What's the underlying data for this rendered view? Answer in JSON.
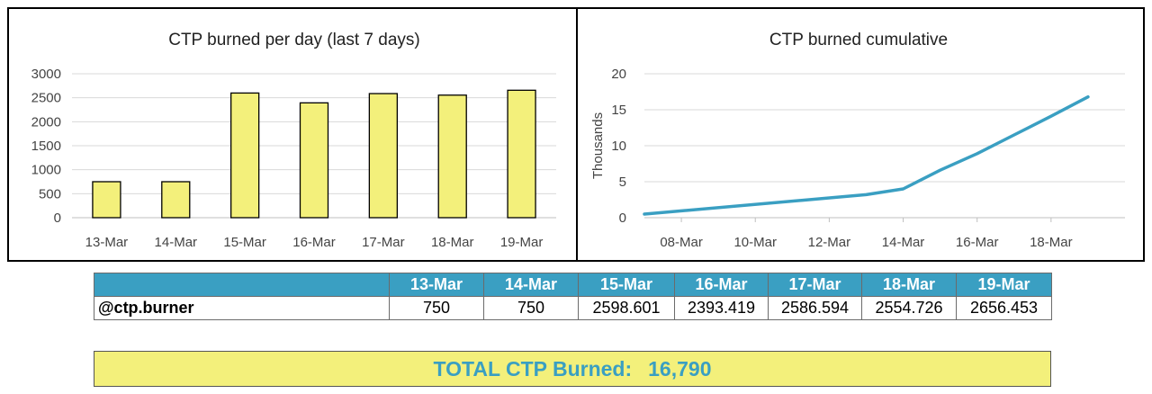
{
  "colors": {
    "bar_fill": "#f3f07b",
    "line": "#3a9fc2",
    "header_bg": "#3a9fc2",
    "total_bg": "#f3f07b",
    "total_text": "#3a9fc2"
  },
  "chart_data": [
    {
      "type": "bar",
      "title": "CTP burned per day (last 7 days)",
      "categories": [
        "13-Mar",
        "14-Mar",
        "15-Mar",
        "16-Mar",
        "17-Mar",
        "18-Mar",
        "19-Mar"
      ],
      "values": [
        750,
        750,
        2598.601,
        2393.419,
        2586.594,
        2554.726,
        2656.453
      ],
      "ylim": [
        0,
        3000
      ],
      "yticks": [
        0,
        500,
        1000,
        1500,
        2000,
        2500,
        3000
      ],
      "xlabel": "",
      "ylabel": "",
      "grid": true
    },
    {
      "type": "line",
      "title": "CTP burned cumulative",
      "ylabel": "Thousands",
      "xticks": [
        "08-Mar",
        "10-Mar",
        "12-Mar",
        "14-Mar",
        "16-Mar",
        "18-Mar"
      ],
      "x": [
        "07-Mar",
        "13-Mar",
        "14-Mar",
        "15-Mar",
        "16-Mar",
        "17-Mar",
        "18-Mar",
        "19-Mar"
      ],
      "y": [
        0.5,
        3.2,
        4.0,
        6.6,
        8.9,
        11.5,
        14.1,
        16.79
      ],
      "ylim": [
        0,
        20
      ],
      "yticks": [
        0,
        5,
        10,
        15,
        20
      ],
      "grid": true
    }
  ],
  "table": {
    "row_label": "@ctp.burner",
    "headers": [
      "13-Mar",
      "14-Mar",
      "15-Mar",
      "16-Mar",
      "17-Mar",
      "18-Mar",
      "19-Mar"
    ],
    "values": [
      "750",
      "750",
      "2598.601",
      "2393.419",
      "2586.594",
      "2554.726",
      "2656.453"
    ]
  },
  "total": {
    "label": "TOTAL CTP Burned:",
    "value": "16,790"
  }
}
